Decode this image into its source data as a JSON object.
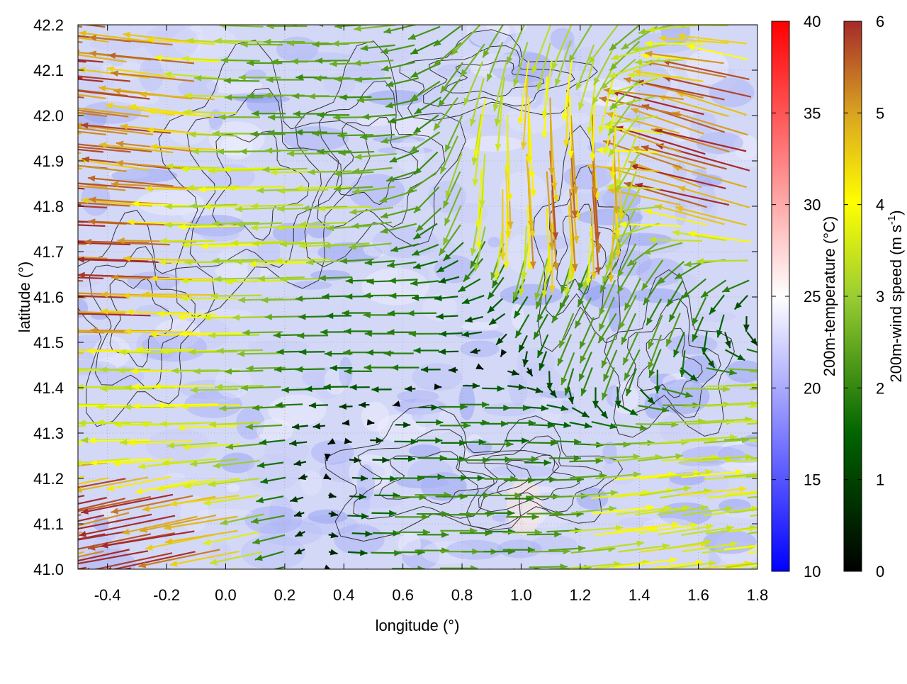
{
  "chart_data": {
    "type": "other",
    "xlabel": "longitude (°)",
    "ylabel": "latitude (°)",
    "xlim": [
      -0.5,
      1.8
    ],
    "ylim": [
      41.0,
      42.2
    ],
    "x_ticks": [
      "-0.4",
      "-0.2",
      "0.0",
      "0.2",
      "0.4",
      "0.6",
      "0.8",
      "1.0",
      "1.2",
      "1.4",
      "1.6",
      "1.8"
    ],
    "y_ticks": [
      "41.0",
      "41.1",
      "41.2",
      "41.3",
      "41.4",
      "41.5",
      "41.6",
      "41.7",
      "41.8",
      "41.9",
      "42.0",
      "42.1",
      "42.2"
    ],
    "grid": true,
    "layers": [
      "temperature color map",
      "topography contours",
      "wind vectors colored by speed"
    ],
    "colorbars": [
      {
        "label": "200m-temperature (°C)",
        "range": [
          10,
          40
        ],
        "ticks": [
          "10",
          "15",
          "20",
          "25",
          "30",
          "35",
          "40"
        ],
        "colors": [
          "#0000ff",
          "#ffffff",
          "#ff0000"
        ]
      },
      {
        "label_main": "200m-wind speed (m s",
        "label_sup": "-1",
        "label_close": ")",
        "range": [
          0,
          6
        ],
        "ticks": [
          "0",
          "1",
          "2",
          "3",
          "4",
          "5",
          "6"
        ],
        "colors": [
          "#000000",
          "#006400",
          "#9acd32",
          "#ffff00",
          "#daa520",
          "#a52a2a"
        ]
      }
    ],
    "wind_field": [
      {
        "lon": -0.45,
        "lat": 42.15,
        "u": -5.5,
        "v": 0.6,
        "speed": 5.6
      },
      {
        "lon": -0.3,
        "lat": 41.95,
        "u": -5.2,
        "v": 0.6,
        "speed": 5.3
      },
      {
        "lon": -0.4,
        "lat": 41.65,
        "u": -5.8,
        "v": 0.2,
        "speed": 5.8
      },
      {
        "lon": -0.3,
        "lat": 41.35,
        "u": -3.5,
        "v": 0.0,
        "speed": 3.5
      },
      {
        "lon": -0.35,
        "lat": 41.1,
        "u": -5.5,
        "v": -1.2,
        "speed": 5.6
      },
      {
        "lon": 0.2,
        "lat": 41.8,
        "u": -3.5,
        "v": -0.1,
        "speed": 3.5
      },
      {
        "lon": 0.3,
        "lat": 42.0,
        "u": -2.3,
        "v": 0.0,
        "speed": 2.3
      },
      {
        "lon": 0.6,
        "lat": 41.5,
        "u": -1.8,
        "v": 0.0,
        "speed": 1.8
      },
      {
        "lon": 0.8,
        "lat": 41.3,
        "u": 1.8,
        "v": 0.0,
        "speed": 1.8
      },
      {
        "lon": 0.8,
        "lat": 41.1,
        "u": 2.2,
        "v": 0.0,
        "speed": 2.2
      },
      {
        "lon": 1.2,
        "lat": 41.9,
        "u": 0.4,
        "v": -5.0,
        "speed": 5.0
      },
      {
        "lon": 1.35,
        "lat": 41.55,
        "u": -1.0,
        "v": -2.0,
        "speed": 2.2
      },
      {
        "lon": 1.45,
        "lat": 41.1,
        "u": 3.8,
        "v": 0.5,
        "speed": 3.8
      },
      {
        "lon": 1.65,
        "lat": 41.9,
        "u": -5.4,
        "v": 1.6,
        "speed": 5.6
      },
      {
        "lon": 1.65,
        "lat": 41.3,
        "u": 3.2,
        "v": 0.2,
        "speed": 3.2
      }
    ]
  }
}
